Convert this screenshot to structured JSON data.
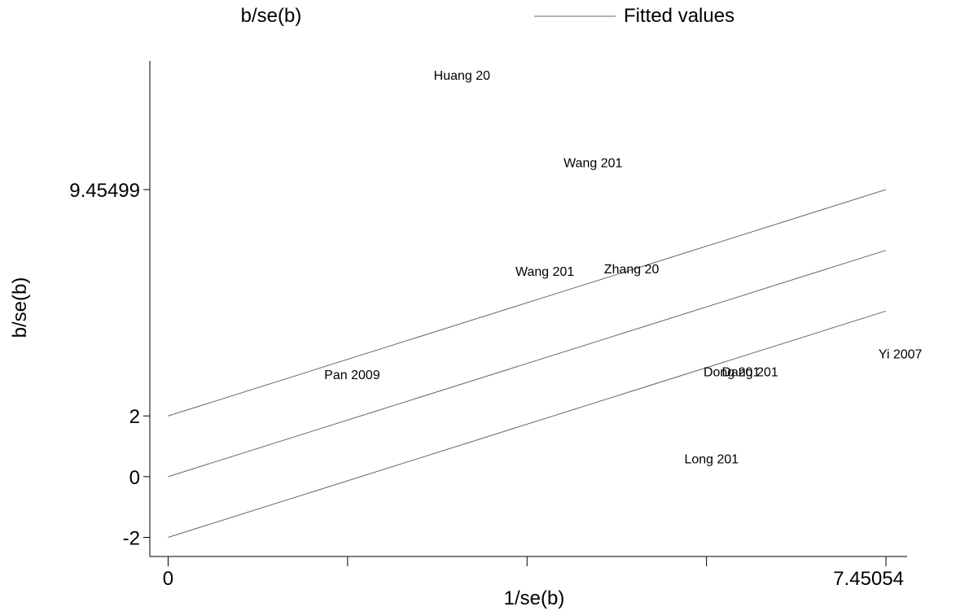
{
  "chart_data": {
    "type": "scatter",
    "title": "",
    "legend": {
      "placement": "top",
      "entries": [
        "b/se(b)",
        "Fitted values"
      ]
    },
    "xlabel": "1/se(b)",
    "ylabel": "b/se(b)",
    "x_ticks": [
      {
        "value": 0,
        "label": "0"
      },
      {
        "value": 7.45054,
        "label": "7.45054"
      }
    ],
    "x_minor_ticks": [
      1.8626,
      3.7253,
      5.5879
    ],
    "y_ticks": [
      {
        "value": -2,
        "label": "-2"
      },
      {
        "value": 0,
        "label": "0"
      },
      {
        "value": 2,
        "label": "2"
      },
      {
        "value": 9.45499,
        "label": "9.45499"
      }
    ],
    "xlim": [
      -0.19,
      7.67
    ],
    "ylim": [
      -2.63,
      13.69
    ],
    "grid": false,
    "points": [
      {
        "label": "Huang 20",
        "x": 3.05,
        "y": 13.23
      },
      {
        "label": "Wang 201",
        "x": 4.41,
        "y": 10.35
      },
      {
        "label": "Wang 201",
        "x": 3.91,
        "y": 6.78
      },
      {
        "label": "Zhang 20",
        "x": 4.81,
        "y": 6.85
      },
      {
        "label": "Pan 2009",
        "x": 1.91,
        "y": 3.37
      },
      {
        "label": "Dong 201",
        "x": 5.85,
        "y": 3.46
      },
      {
        "label": "Dang 201",
        "x": 6.04,
        "y": 3.46
      },
      {
        "label": "Yi 2007",
        "x": 7.6,
        "y": 4.06
      },
      {
        "label": "Long 201",
        "x": 5.64,
        "y": 0.6
      }
    ],
    "series": [
      {
        "name": "Fitted values",
        "x": [
          0,
          7.45054
        ],
        "y": [
          2,
          9.45499
        ]
      },
      {
        "x": [
          0,
          7.45054
        ],
        "y": [
          0,
          7.45499
        ]
      },
      {
        "x": [
          0,
          7.45054
        ],
        "y": [
          -2,
          5.45499
        ]
      }
    ]
  }
}
